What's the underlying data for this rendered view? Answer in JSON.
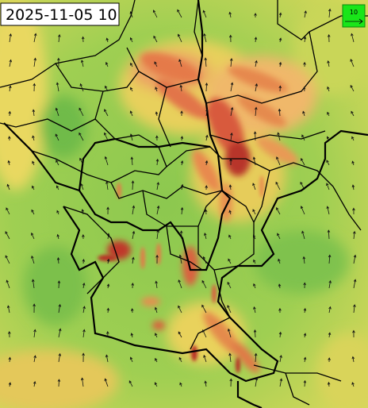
{
  "timestamp": "2025-11-05 10",
  "legend": {
    "label": "10"
  }
}
